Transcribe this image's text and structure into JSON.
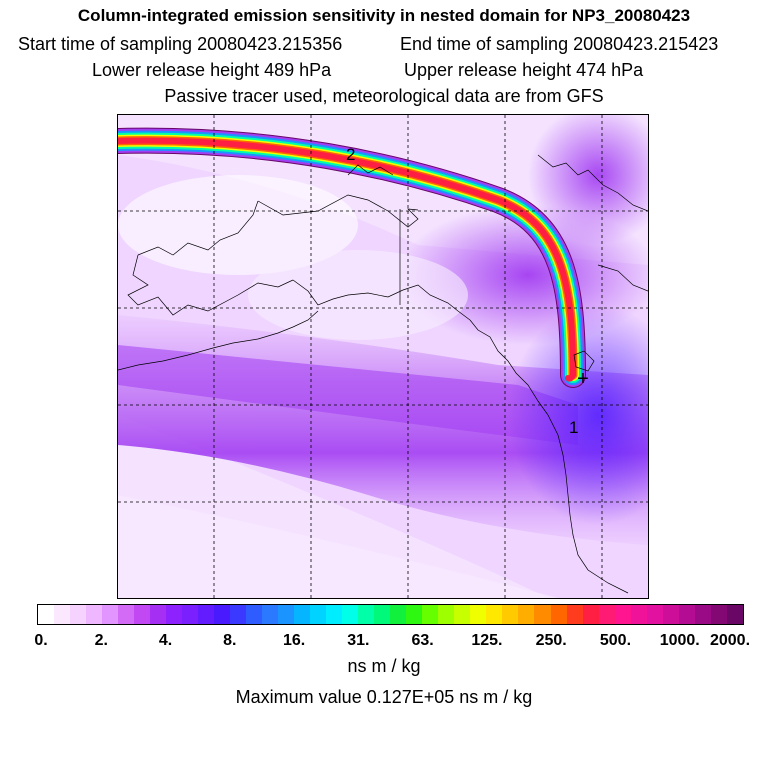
{
  "header": {
    "title": "Column-integrated emission sensitivity in nested domain for NP3_20080423",
    "start_time": "Start time of sampling 20080423.215356",
    "end_time": "End time of sampling 20080423.215423",
    "lower_height": "Lower release height  489 hPa",
    "upper_height": "Upper release height  474 hPa",
    "tracer_note": "Passive tracer used, meteorological data are from GFS"
  },
  "map": {
    "labels": [
      "2",
      "1"
    ],
    "release_marker": "+"
  },
  "colorbar": {
    "tick_labels": [
      "0.",
      "2.",
      "4.",
      "8.",
      "16.",
      "31.",
      "63.",
      "125.",
      "250.",
      "500.",
      "1000.",
      "2000."
    ],
    "colors": [
      "#ffffff",
      "#fbe8ff",
      "#f6d2ff",
      "#efb7ff",
      "#e395ff",
      "#d46bf6",
      "#c148f2",
      "#a52ff2",
      "#8d22ff",
      "#7a20ff",
      "#621cff",
      "#4a1aff",
      "#3b39ff",
      "#2e5cff",
      "#2a79ff",
      "#1b94ff",
      "#06b5ff",
      "#00d3ff",
      "#00ecff",
      "#00ffe8",
      "#00ffa8",
      "#00f97a",
      "#11f03c",
      "#2ef711",
      "#66ff00",
      "#9dff00",
      "#c8ff00",
      "#f0ff00",
      "#ffe800",
      "#ffcb00",
      "#ffae00",
      "#ff8b00",
      "#ff6600",
      "#ff3d1e",
      "#ff1f43",
      "#ff1a73",
      "#ff158f",
      "#f0139a",
      "#e211a0",
      "#cc0e99",
      "#b40c93",
      "#9a0a86",
      "#830874",
      "#6a0666"
    ],
    "unit": "ns m / kg",
    "max_value": "Maximum value  0.127E+05 ns m / kg"
  }
}
